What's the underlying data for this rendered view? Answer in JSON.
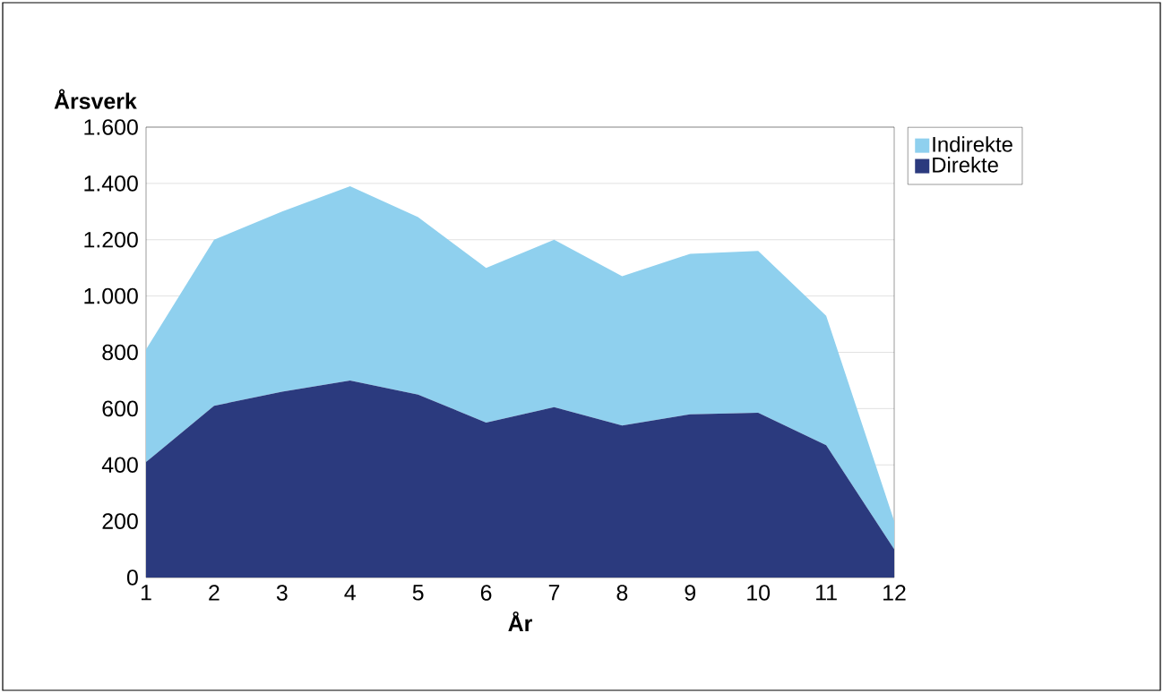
{
  "chart_data": {
    "type": "area",
    "stacked": true,
    "ylabel": "Årsverk",
    "xlabel": "År",
    "x": [
      1,
      2,
      3,
      4,
      5,
      6,
      7,
      8,
      9,
      10,
      11,
      12
    ],
    "series": [
      {
        "name": "Direkte",
        "color": "#2b3a7e",
        "values": [
          410,
          610,
          660,
          700,
          650,
          550,
          605,
          540,
          580,
          585,
          470,
          100
        ]
      },
      {
        "name": "Indirekte",
        "color": "#8fd0ee",
        "values": [
          400,
          590,
          640,
          690,
          630,
          550,
          595,
          530,
          570,
          575,
          460,
          100
        ]
      }
    ],
    "xlim": [
      1,
      12
    ],
    "xticks": [
      1,
      2,
      3,
      4,
      5,
      6,
      7,
      8,
      9,
      10,
      11,
      12
    ],
    "ylim": [
      0,
      1600
    ],
    "yticks": [
      0,
      200,
      400,
      600,
      800,
      {
        "value": 1000,
        "label": "1.000"
      },
      {
        "value": 1200,
        "label": "1.200"
      },
      {
        "value": 1400,
        "label": "1.400"
      },
      {
        "value": 1600,
        "label": "1.600"
      }
    ],
    "grid": "y",
    "legend": "right"
  }
}
